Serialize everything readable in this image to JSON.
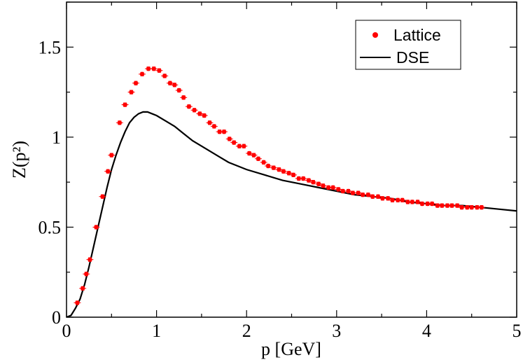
{
  "chart_data": {
    "type": "scatter",
    "xlabel": "p [GeV]",
    "ylabel": "Z(p²)",
    "xlim": [
      0,
      5
    ],
    "ylim": [
      0,
      1.75
    ],
    "x_ticks": [
      "0",
      "1",
      "2",
      "3",
      "4",
      "5"
    ],
    "y_ticks": [
      "0",
      "0.5",
      "1",
      "1.5"
    ],
    "legend_position": "top-right",
    "grid": false,
    "colors": {
      "lattice": "#ff0000",
      "dse": "#000000"
    },
    "series": [
      {
        "name": "Lattice",
        "kind": "points-with-errorbars",
        "x": [
          0.12,
          0.18,
          0.22,
          0.26,
          0.33,
          0.4,
          0.46,
          0.5,
          0.59,
          0.65,
          0.72,
          0.77,
          0.84,
          0.91,
          0.97,
          1.03,
          1.09,
          1.15,
          1.2,
          1.25,
          1.3,
          1.36,
          1.42,
          1.48,
          1.53,
          1.59,
          1.64,
          1.7,
          1.75,
          1.81,
          1.86,
          1.92,
          1.97,
          2.03,
          2.08,
          2.13,
          2.19,
          2.24,
          2.3,
          2.36,
          2.41,
          2.47,
          2.52,
          2.58,
          2.63,
          2.69,
          2.74,
          2.8,
          2.85,
          2.91,
          2.96,
          3.02,
          3.07,
          3.13,
          3.18,
          3.24,
          3.29,
          3.35,
          3.4,
          3.46,
          3.51,
          3.57,
          3.62,
          3.68,
          3.73,
          3.79,
          3.84,
          3.9,
          3.95,
          4.01,
          4.06,
          4.12,
          4.17,
          4.23,
          4.28,
          4.34,
          4.39,
          4.45,
          4.5,
          4.56,
          4.61
        ],
        "y": [
          0.08,
          0.16,
          0.24,
          0.32,
          0.5,
          0.67,
          0.81,
          0.9,
          1.08,
          1.18,
          1.25,
          1.3,
          1.35,
          1.38,
          1.38,
          1.37,
          1.34,
          1.3,
          1.29,
          1.26,
          1.22,
          1.17,
          1.15,
          1.13,
          1.12,
          1.08,
          1.06,
          1.03,
          1.03,
          0.99,
          0.97,
          0.95,
          0.95,
          0.91,
          0.9,
          0.88,
          0.86,
          0.84,
          0.83,
          0.82,
          0.81,
          0.8,
          0.79,
          0.77,
          0.77,
          0.76,
          0.75,
          0.74,
          0.73,
          0.72,
          0.72,
          0.71,
          0.7,
          0.7,
          0.69,
          0.69,
          0.68,
          0.68,
          0.67,
          0.67,
          0.66,
          0.66,
          0.65,
          0.65,
          0.65,
          0.64,
          0.64,
          0.64,
          0.63,
          0.63,
          0.63,
          0.62,
          0.62,
          0.62,
          0.62,
          0.62,
          0.61,
          0.61,
          0.61,
          0.61,
          0.61
        ],
        "error": 0.01
      },
      {
        "name": "DSE",
        "kind": "line",
        "x": [
          0.0,
          0.05,
          0.1,
          0.15,
          0.2,
          0.25,
          0.3,
          0.35,
          0.4,
          0.45,
          0.5,
          0.55,
          0.6,
          0.65,
          0.7,
          0.75,
          0.8,
          0.85,
          0.9,
          0.95,
          1.0,
          1.1,
          1.2,
          1.3,
          1.4,
          1.5,
          1.6,
          1.7,
          1.8,
          1.9,
          2.0,
          2.2,
          2.4,
          2.6,
          2.8,
          3.0,
          3.2,
          3.4,
          3.6,
          3.8,
          4.0,
          4.2,
          4.4,
          4.6,
          4.8,
          5.0
        ],
        "y": [
          0.0,
          0.01,
          0.05,
          0.1,
          0.18,
          0.28,
          0.39,
          0.5,
          0.61,
          0.72,
          0.82,
          0.9,
          0.97,
          1.03,
          1.08,
          1.11,
          1.13,
          1.14,
          1.14,
          1.13,
          1.12,
          1.09,
          1.06,
          1.02,
          0.98,
          0.95,
          0.92,
          0.89,
          0.86,
          0.84,
          0.82,
          0.79,
          0.76,
          0.74,
          0.72,
          0.7,
          0.68,
          0.67,
          0.66,
          0.64,
          0.63,
          0.62,
          0.62,
          0.61,
          0.6,
          0.59
        ]
      }
    ]
  }
}
